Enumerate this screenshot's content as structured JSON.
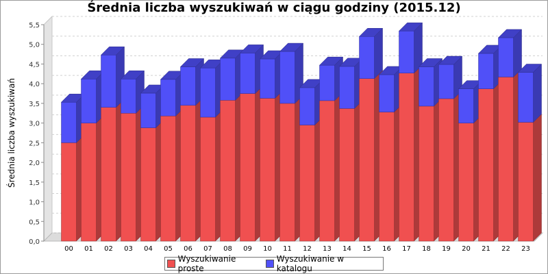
{
  "chart_data": {
    "type": "bar",
    "stacked": true,
    "title": "Średnia liczba wyszukiwań w ciągu godziny (2015.12)",
    "xlabel": "",
    "ylabel": "Średnia liczba wyszukiwań",
    "ylim": [
      0,
      5.5
    ],
    "yticks": [
      "0,0",
      "0,5",
      "1,0",
      "1,5",
      "2,0",
      "2,5",
      "3,0",
      "3,5",
      "4,0",
      "4,5",
      "5,0",
      "5,5"
    ],
    "grid": true,
    "legend_position": "bottom",
    "categories": [
      "00",
      "01",
      "02",
      "03",
      "04",
      "05",
      "06",
      "07",
      "08",
      "09",
      "10",
      "11",
      "12",
      "13",
      "14",
      "15",
      "16",
      "17",
      "18",
      "19",
      "20",
      "21",
      "22",
      "23"
    ],
    "series": [
      {
        "name": "Wyszukiwanie proste",
        "color": "#f05050",
        "values": [
          2.5,
          3.0,
          3.4,
          3.25,
          2.88,
          3.18,
          3.45,
          3.15,
          3.58,
          3.75,
          3.63,
          3.5,
          2.95,
          3.57,
          3.37,
          4.13,
          3.28,
          4.27,
          3.43,
          3.62,
          3.0,
          3.87,
          4.17,
          3.02
        ]
      },
      {
        "name": "Wyszukiwanie w katalogu",
        "color": "#5050f8",
        "values": [
          1.03,
          1.12,
          1.33,
          0.87,
          0.88,
          0.93,
          0.98,
          1.25,
          1.07,
          1.03,
          1.0,
          1.32,
          0.95,
          0.9,
          1.07,
          1.07,
          0.95,
          1.07,
          1.0,
          0.87,
          0.87,
          0.9,
          1.0,
          1.27
        ]
      }
    ]
  }
}
